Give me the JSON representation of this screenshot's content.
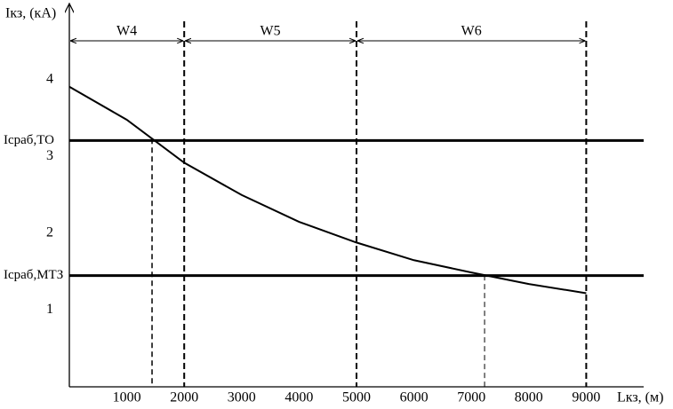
{
  "chart_data": {
    "type": "line",
    "y_label": "Iкз, (кА)",
    "x_label": "Lкз, (м)",
    "x": [
      0,
      1000,
      2000,
      3000,
      4000,
      5000,
      6000,
      7000,
      8000,
      9000
    ],
    "series": [
      {
        "color": "#000000",
        "values": [
          3.91,
          3.48,
          2.92,
          2.5,
          2.15,
          1.88,
          1.65,
          1.49,
          1.34,
          1.22
        ]
      }
    ],
    "xlim": [
      0,
      10000
    ],
    "xticks": [
      1000,
      2000,
      3000,
      4000,
      5000,
      6000,
      7000,
      8000,
      9000
    ],
    "ylim": [
      0,
      5
    ],
    "yticks": [
      1,
      2,
      3,
      4
    ],
    "hlines": [
      {
        "label": "Iсраб,ТО",
        "value": 3.21
      },
      {
        "label": "Iсраб,МТЗ",
        "value": 1.45
      }
    ],
    "drop_lines": [
      1440,
      7230
    ],
    "sections": [
      {
        "label": "W4",
        "from": 0,
        "to": 2000
      },
      {
        "label": "W5",
        "from": 2000,
        "to": 5000
      },
      {
        "label": "W6",
        "from": 5000,
        "to": 9000
      }
    ]
  }
}
